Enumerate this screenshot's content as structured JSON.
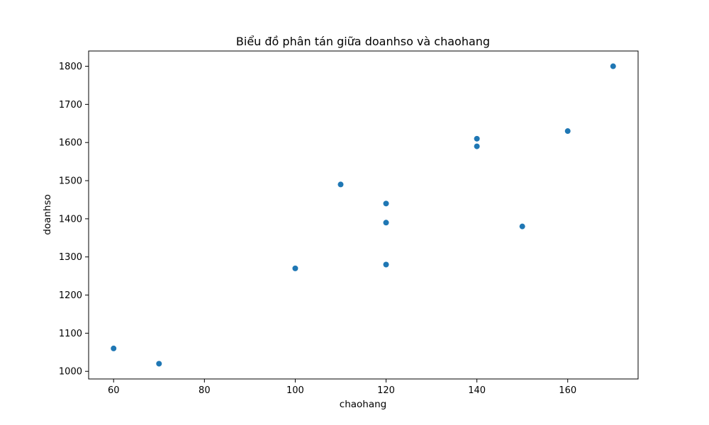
{
  "chart_data": {
    "type": "scatter",
    "title": "Biểu đồ phân tán giữa doanhso và chaohang",
    "xlabel": "chaohang",
    "ylabel": "doanhso",
    "xlim": [
      54.5,
      175.5
    ],
    "ylim": [
      980,
      1840
    ],
    "x_ticks": [
      60,
      80,
      100,
      120,
      140,
      160
    ],
    "y_ticks": [
      1000,
      1100,
      1200,
      1300,
      1400,
      1500,
      1600,
      1700,
      1800
    ],
    "grid": false,
    "series": [
      {
        "color": "#1f77b4",
        "points": [
          {
            "x": 60,
            "y": 1060
          },
          {
            "x": 70,
            "y": 1020
          },
          {
            "x": 100,
            "y": 1270
          },
          {
            "x": 110,
            "y": 1490
          },
          {
            "x": 120,
            "y": 1440
          },
          {
            "x": 120,
            "y": 1390
          },
          {
            "x": 120,
            "y": 1280
          },
          {
            "x": 140,
            "y": 1610
          },
          {
            "x": 140,
            "y": 1590
          },
          {
            "x": 150,
            "y": 1380
          },
          {
            "x": 160,
            "y": 1630
          },
          {
            "x": 170,
            "y": 1800
          }
        ]
      }
    ]
  }
}
